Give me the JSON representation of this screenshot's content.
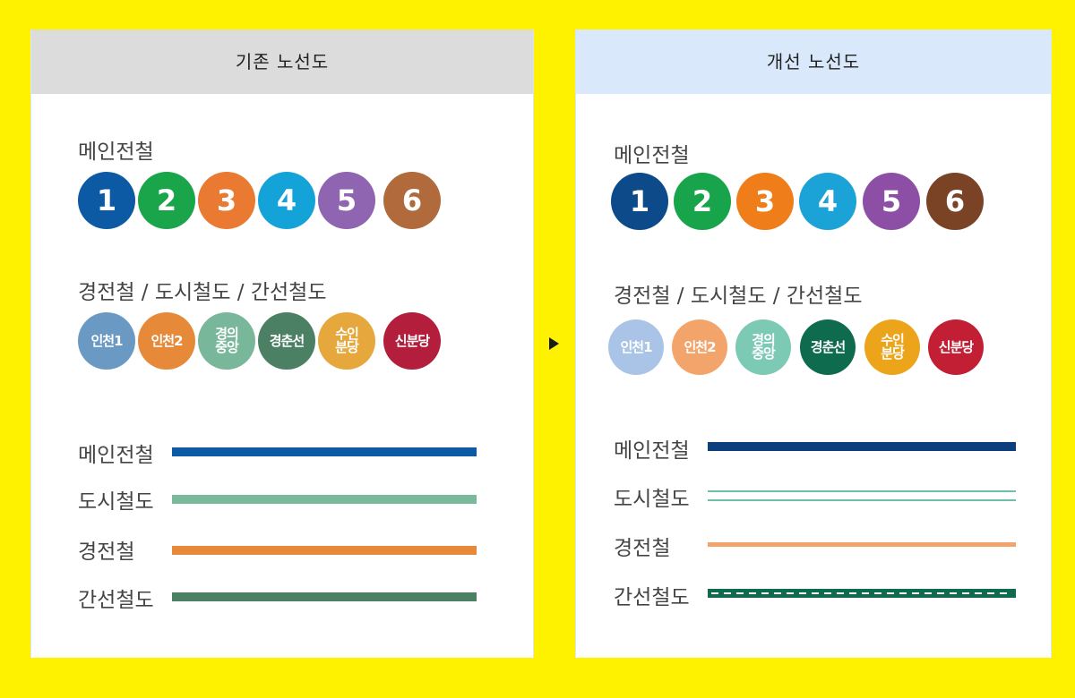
{
  "old": {
    "title": "기존 노선도",
    "main_label": "메인전철",
    "main_lines": [
      {
        "label": "1",
        "color": "#0b5aa3"
      },
      {
        "label": "2",
        "color": "#1aa54a"
      },
      {
        "label": "3",
        "color": "#ea7a31"
      },
      {
        "label": "4",
        "color": "#14a3d8"
      },
      {
        "label": "5",
        "color": "#8f64b0"
      },
      {
        "label": "6",
        "color": "#b06a3b"
      }
    ],
    "other_label": "경전철 / 도시철도 / 간선철도",
    "other_lines": [
      {
        "label": "인천1",
        "color": "#6a9ac4"
      },
      {
        "label": "인천2",
        "color": "#e68a3a"
      },
      {
        "label": "경의\n중앙",
        "color": "#79b79b"
      },
      {
        "label": "경춘선",
        "color": "#4b8064"
      },
      {
        "label": "수인\n분당",
        "color": "#e6a83c"
      },
      {
        "label": "신분당",
        "color": "#b31e3c"
      }
    ],
    "legend": [
      {
        "label": "메인전철",
        "color": "#0b5aa3"
      },
      {
        "label": "도시철도",
        "color": "#7ab99b"
      },
      {
        "label": "경전철",
        "color": "#e68a3a"
      },
      {
        "label": "간선철도",
        "color": "#4b8064"
      }
    ]
  },
  "new": {
    "title": "개선 노선도",
    "main_label": "메인전철",
    "main_lines": [
      {
        "label": "1",
        "color": "#0d4a8a"
      },
      {
        "label": "2",
        "color": "#18a44a"
      },
      {
        "label": "3",
        "color": "#ef7d1a"
      },
      {
        "label": "4",
        "color": "#1ba2d6"
      },
      {
        "label": "5",
        "color": "#8d4fa6"
      },
      {
        "label": "6",
        "color": "#7b4326"
      }
    ],
    "other_label": "경전철 / 도시철도 / 간선철도",
    "other_lines": [
      {
        "label": "인천1",
        "color": "#a9c4e6"
      },
      {
        "label": "인천2",
        "color": "#f2a46b"
      },
      {
        "label": "경의\n중앙",
        "color": "#7cc9b4"
      },
      {
        "label": "경춘선",
        "color": "#0f6b4e"
      },
      {
        "label": "수인\n분당",
        "color": "#eca41a"
      },
      {
        "label": "신분당",
        "color": "#c21f35"
      }
    ],
    "legend": [
      {
        "label": "메인전철",
        "color": "#0d3f7e",
        "style": "solid"
      },
      {
        "label": "도시철도",
        "color": "#6cc1a8",
        "style": "double"
      },
      {
        "label": "경전철",
        "color": "#f2a46b",
        "style": "thin"
      },
      {
        "label": "간선철도",
        "color": "#0f6b4e",
        "style": "dashed"
      }
    ]
  }
}
